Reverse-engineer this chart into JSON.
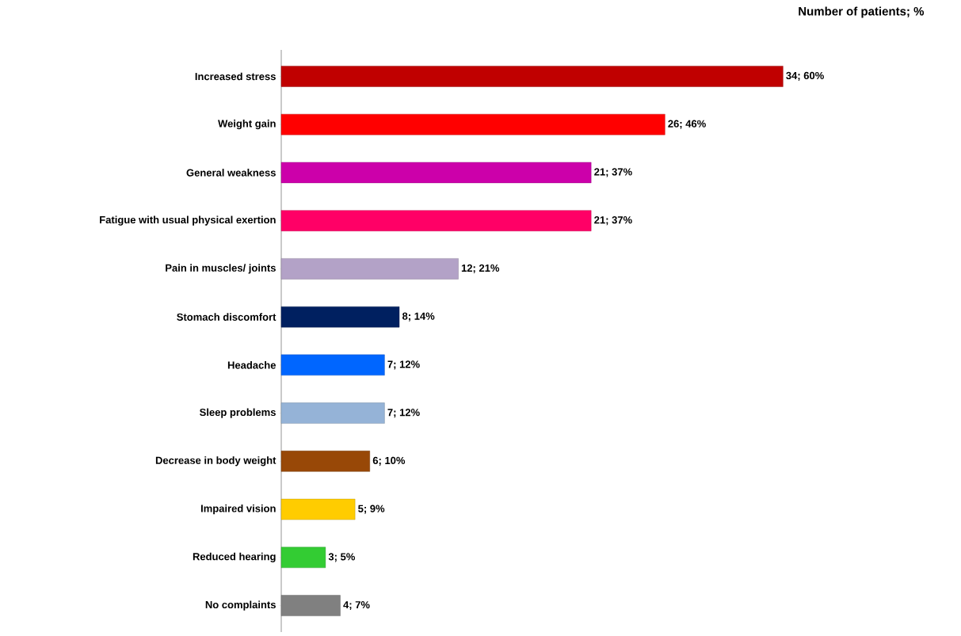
{
  "chart_data": {
    "type": "bar",
    "orientation": "horizontal",
    "title": "Number of patients; %",
    "categories": [
      "Increased stress",
      "Weight gain",
      "General weakness",
      "Fatigue with usual physical exertion",
      "Pain in muscles/ joints",
      "Stomach discomfort",
      "Headache",
      "Sleep problems",
      "Decrease in body weight",
      "Impaired vision",
      "Reduced hearing",
      "No complaints"
    ],
    "values": [
      34,
      26,
      21,
      21,
      12,
      8,
      7,
      7,
      6,
      5,
      3,
      4
    ],
    "colors": [
      "#c00000",
      "#ff0000",
      "#cc00aa",
      "#ff0066",
      "#b3a2c7",
      "#002060",
      "#0066ff",
      "#95b3d7",
      "#984807",
      "#ffcc00",
      "#33cc33",
      "#808080"
    ],
    "value_labels": [
      "34;  60%",
      "26;  46%",
      "21;  37%",
      "21;  37%",
      "12;  21%",
      "8;  14%",
      "7;  12%",
      "7;  12%",
      "6;  10%",
      "5;  9%",
      "3;  5%",
      "4;  7%"
    ]
  }
}
